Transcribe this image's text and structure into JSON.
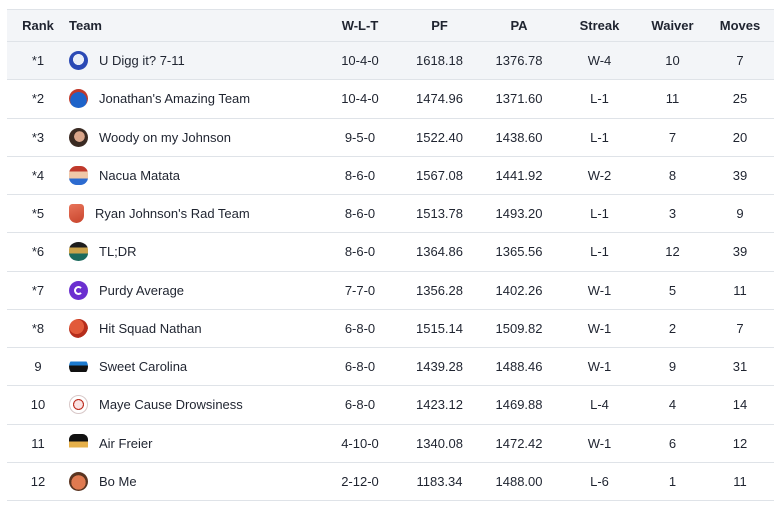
{
  "headers": {
    "rank": "Rank",
    "team": "Team",
    "wlt": "W-L-T",
    "pf": "PF",
    "pa": "PA",
    "streak": "Streak",
    "waiver": "Waiver",
    "moves": "Moves"
  },
  "rows": [
    {
      "rank": "*1",
      "team": "U Digg it? 7-11",
      "wlt": "10-4-0",
      "pf": "1618.18",
      "pa": "1376.78",
      "streak": "W-4",
      "waiver": "10",
      "moves": "7",
      "avatar": "blue-helmet-icon"
    },
    {
      "rank": "*2",
      "team": "Jonathan's Amazing Team",
      "wlt": "10-4-0",
      "pf": "1474.96",
      "pa": "1371.60",
      "streak": "L-1",
      "waiver": "11",
      "moves": "25",
      "avatar": "cap-icon"
    },
    {
      "rank": "*3",
      "team": "Woody on my Johnson",
      "wlt": "9-5-0",
      "pf": "1522.40",
      "pa": "1438.60",
      "streak": "L-1",
      "waiver": "7",
      "moves": "20",
      "avatar": "face-photo-icon"
    },
    {
      "rank": "*4",
      "team": "Nacua Matata",
      "wlt": "8-6-0",
      "pf": "1567.08",
      "pa": "1441.92",
      "streak": "W-2",
      "waiver": "8",
      "moves": "39",
      "avatar": "player-avatar-icon"
    },
    {
      "rank": "*5",
      "team": "Ryan Johnson's Rad Team",
      "wlt": "8-6-0",
      "pf": "1513.78",
      "pa": "1493.20",
      "streak": "L-1",
      "waiver": "3",
      "moves": "9",
      "avatar": "foam-finger-icon"
    },
    {
      "rank": "*6",
      "team": "TL;DR",
      "wlt": "8-6-0",
      "pf": "1364.86",
      "pa": "1365.56",
      "streak": "L-1",
      "waiver": "12",
      "moves": "39",
      "avatar": "jaguar-logo-icon"
    },
    {
      "rank": "*7",
      "team": "Purdy Average",
      "wlt": "7-7-0",
      "pf": "1356.28",
      "pa": "1402.26",
      "streak": "W-1",
      "waiver": "5",
      "moves": "11",
      "avatar": "purple-logo-icon"
    },
    {
      "rank": "*8",
      "team": "Hit Squad Nathan",
      "wlt": "6-8-0",
      "pf": "1515.14",
      "pa": "1509.82",
      "streak": "W-1",
      "waiver": "2",
      "moves": "7",
      "avatar": "red-helmet-icon"
    },
    {
      "rank": "9",
      "team": "Sweet Carolina",
      "wlt": "6-8-0",
      "pf": "1439.28",
      "pa": "1488.46",
      "streak": "W-1",
      "waiver": "9",
      "moves": "31",
      "avatar": "panther-logo-icon"
    },
    {
      "rank": "10",
      "team": "Maye Cause Drowsiness",
      "wlt": "6-8-0",
      "pf": "1423.12",
      "pa": "1469.88",
      "streak": "L-4",
      "waiver": "4",
      "moves": "14",
      "avatar": "patriot-logo-icon"
    },
    {
      "rank": "11",
      "team": "Air Freier",
      "wlt": "4-10-0",
      "pf": "1340.08",
      "pa": "1472.42",
      "streak": "W-1",
      "waiver": "6",
      "moves": "12",
      "avatar": "pirate-logo-icon"
    },
    {
      "rank": "12",
      "team": "Bo Me",
      "wlt": "2-12-0",
      "pf": "1183.34",
      "pa": "1488.00",
      "streak": "L-6",
      "waiver": "1",
      "moves": "11",
      "avatar": "face-avatar-icon"
    }
  ]
}
